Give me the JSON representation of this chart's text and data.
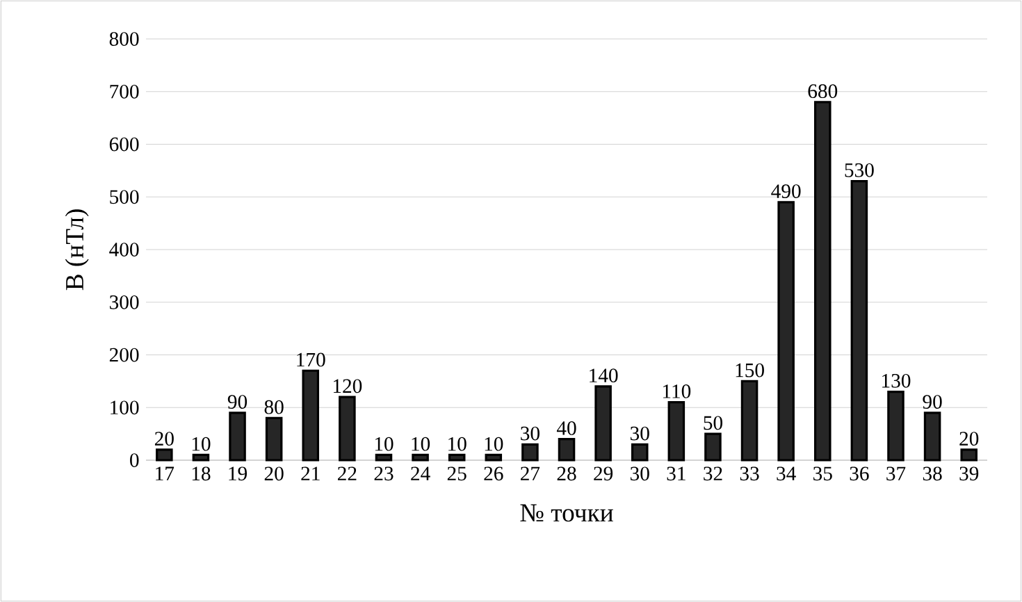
{
  "chart_data": {
    "type": "bar",
    "categories": [
      "17",
      "18",
      "19",
      "20",
      "21",
      "22",
      "23",
      "24",
      "25",
      "26",
      "27",
      "28",
      "29",
      "30",
      "31",
      "32",
      "33",
      "34",
      "35",
      "36",
      "37",
      "38",
      "39"
    ],
    "values": [
      20,
      10,
      90,
      80,
      170,
      120,
      10,
      10,
      10,
      10,
      30,
      40,
      140,
      30,
      110,
      50,
      150,
      490,
      680,
      530,
      130,
      90,
      20
    ],
    "color": "#262626",
    "xlabel": "№ точки",
    "ylabel": "B (нТл)",
    "ylim": [
      0,
      800
    ],
    "yticks": [
      0,
      100,
      200,
      300,
      400,
      500,
      600,
      700,
      800
    ],
    "grid": "y",
    "data_labels": true
  }
}
